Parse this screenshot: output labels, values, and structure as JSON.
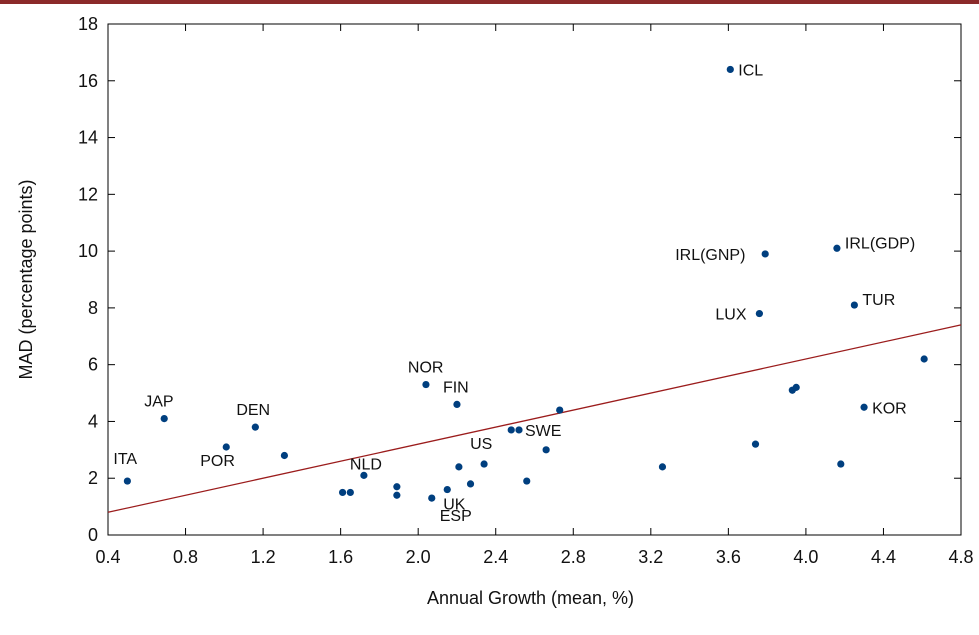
{
  "chart_data": {
    "type": "scatter",
    "title": "",
    "xlabel": "Annual Growth (mean, %)",
    "ylabel": "MAD (percentage points)",
    "xlim": [
      0.4,
      4.8
    ],
    "ylim": [
      0,
      18
    ],
    "xticks": [
      0.4,
      0.8,
      1.2,
      1.6,
      2.0,
      2.4,
      2.8,
      3.2,
      3.6,
      4.0,
      4.4,
      4.8
    ],
    "xtick_labels": [
      "0.4",
      "0.8",
      "1.2",
      "1.6",
      "2.0",
      "2.4",
      "2.8",
      "3.2",
      "3.6",
      "4.0",
      "4.4",
      "4.8"
    ],
    "yticks": [
      0,
      2,
      4,
      6,
      8,
      10,
      12,
      14,
      16,
      18
    ],
    "ytick_labels": [
      "0",
      "2",
      "4",
      "6",
      "8",
      "10",
      "12",
      "14",
      "16",
      "18"
    ],
    "grid": false,
    "marker_color": "#003f7f",
    "line_color": "#9b1c1c",
    "points": [
      {
        "x": 0.5,
        "y": 1.9,
        "label": "ITA"
      },
      {
        "x": 0.69,
        "y": 4.1,
        "label": "JAP"
      },
      {
        "x": 1.01,
        "y": 3.1,
        "label": "POR"
      },
      {
        "x": 1.16,
        "y": 3.8,
        "label": "DEN"
      },
      {
        "x": 1.31,
        "y": 2.8,
        "label": ""
      },
      {
        "x": 1.61,
        "y": 1.5,
        "label": ""
      },
      {
        "x": 1.65,
        "y": 1.5,
        "label": ""
      },
      {
        "x": 1.72,
        "y": 2.1,
        "label": "NLD"
      },
      {
        "x": 1.89,
        "y": 1.7,
        "label": ""
      },
      {
        "x": 1.89,
        "y": 1.4,
        "label": ""
      },
      {
        "x": 2.04,
        "y": 5.3,
        "label": "NOR"
      },
      {
        "x": 2.07,
        "y": 1.3,
        "label": "ESP"
      },
      {
        "x": 2.15,
        "y": 1.6,
        "label": "UK"
      },
      {
        "x": 2.2,
        "y": 4.6,
        "label": "FIN"
      },
      {
        "x": 2.21,
        "y": 2.4,
        "label": ""
      },
      {
        "x": 2.27,
        "y": 1.8,
        "label": ""
      },
      {
        "x": 2.34,
        "y": 2.5,
        "label": "US"
      },
      {
        "x": 2.48,
        "y": 3.7,
        "label": ""
      },
      {
        "x": 2.52,
        "y": 3.7,
        "label": "SWE"
      },
      {
        "x": 2.56,
        "y": 1.9,
        "label": ""
      },
      {
        "x": 2.66,
        "y": 3.0,
        "label": ""
      },
      {
        "x": 2.73,
        "y": 4.4,
        "label": ""
      },
      {
        "x": 3.26,
        "y": 2.4,
        "label": ""
      },
      {
        "x": 3.61,
        "y": 16.4,
        "label": "ICL"
      },
      {
        "x": 3.74,
        "y": 3.2,
        "label": ""
      },
      {
        "x": 3.76,
        "y": 7.8,
        "label": "LUX"
      },
      {
        "x": 3.79,
        "y": 9.9,
        "label": "IRL(GNP)"
      },
      {
        "x": 3.93,
        "y": 5.1,
        "label": ""
      },
      {
        "x": 3.95,
        "y": 5.2,
        "label": ""
      },
      {
        "x": 4.16,
        "y": 10.1,
        "label": "IRL(GDP)"
      },
      {
        "x": 4.18,
        "y": 2.5,
        "label": ""
      },
      {
        "x": 4.25,
        "y": 8.1,
        "label": "TUR"
      },
      {
        "x": 4.3,
        "y": 4.5,
        "label": "KOR"
      },
      {
        "x": 4.61,
        "y": 6.2,
        "label": ""
      }
    ],
    "fit_line": {
      "x": [
        0.4,
        4.8
      ],
      "y": [
        0.8,
        7.4
      ]
    }
  }
}
